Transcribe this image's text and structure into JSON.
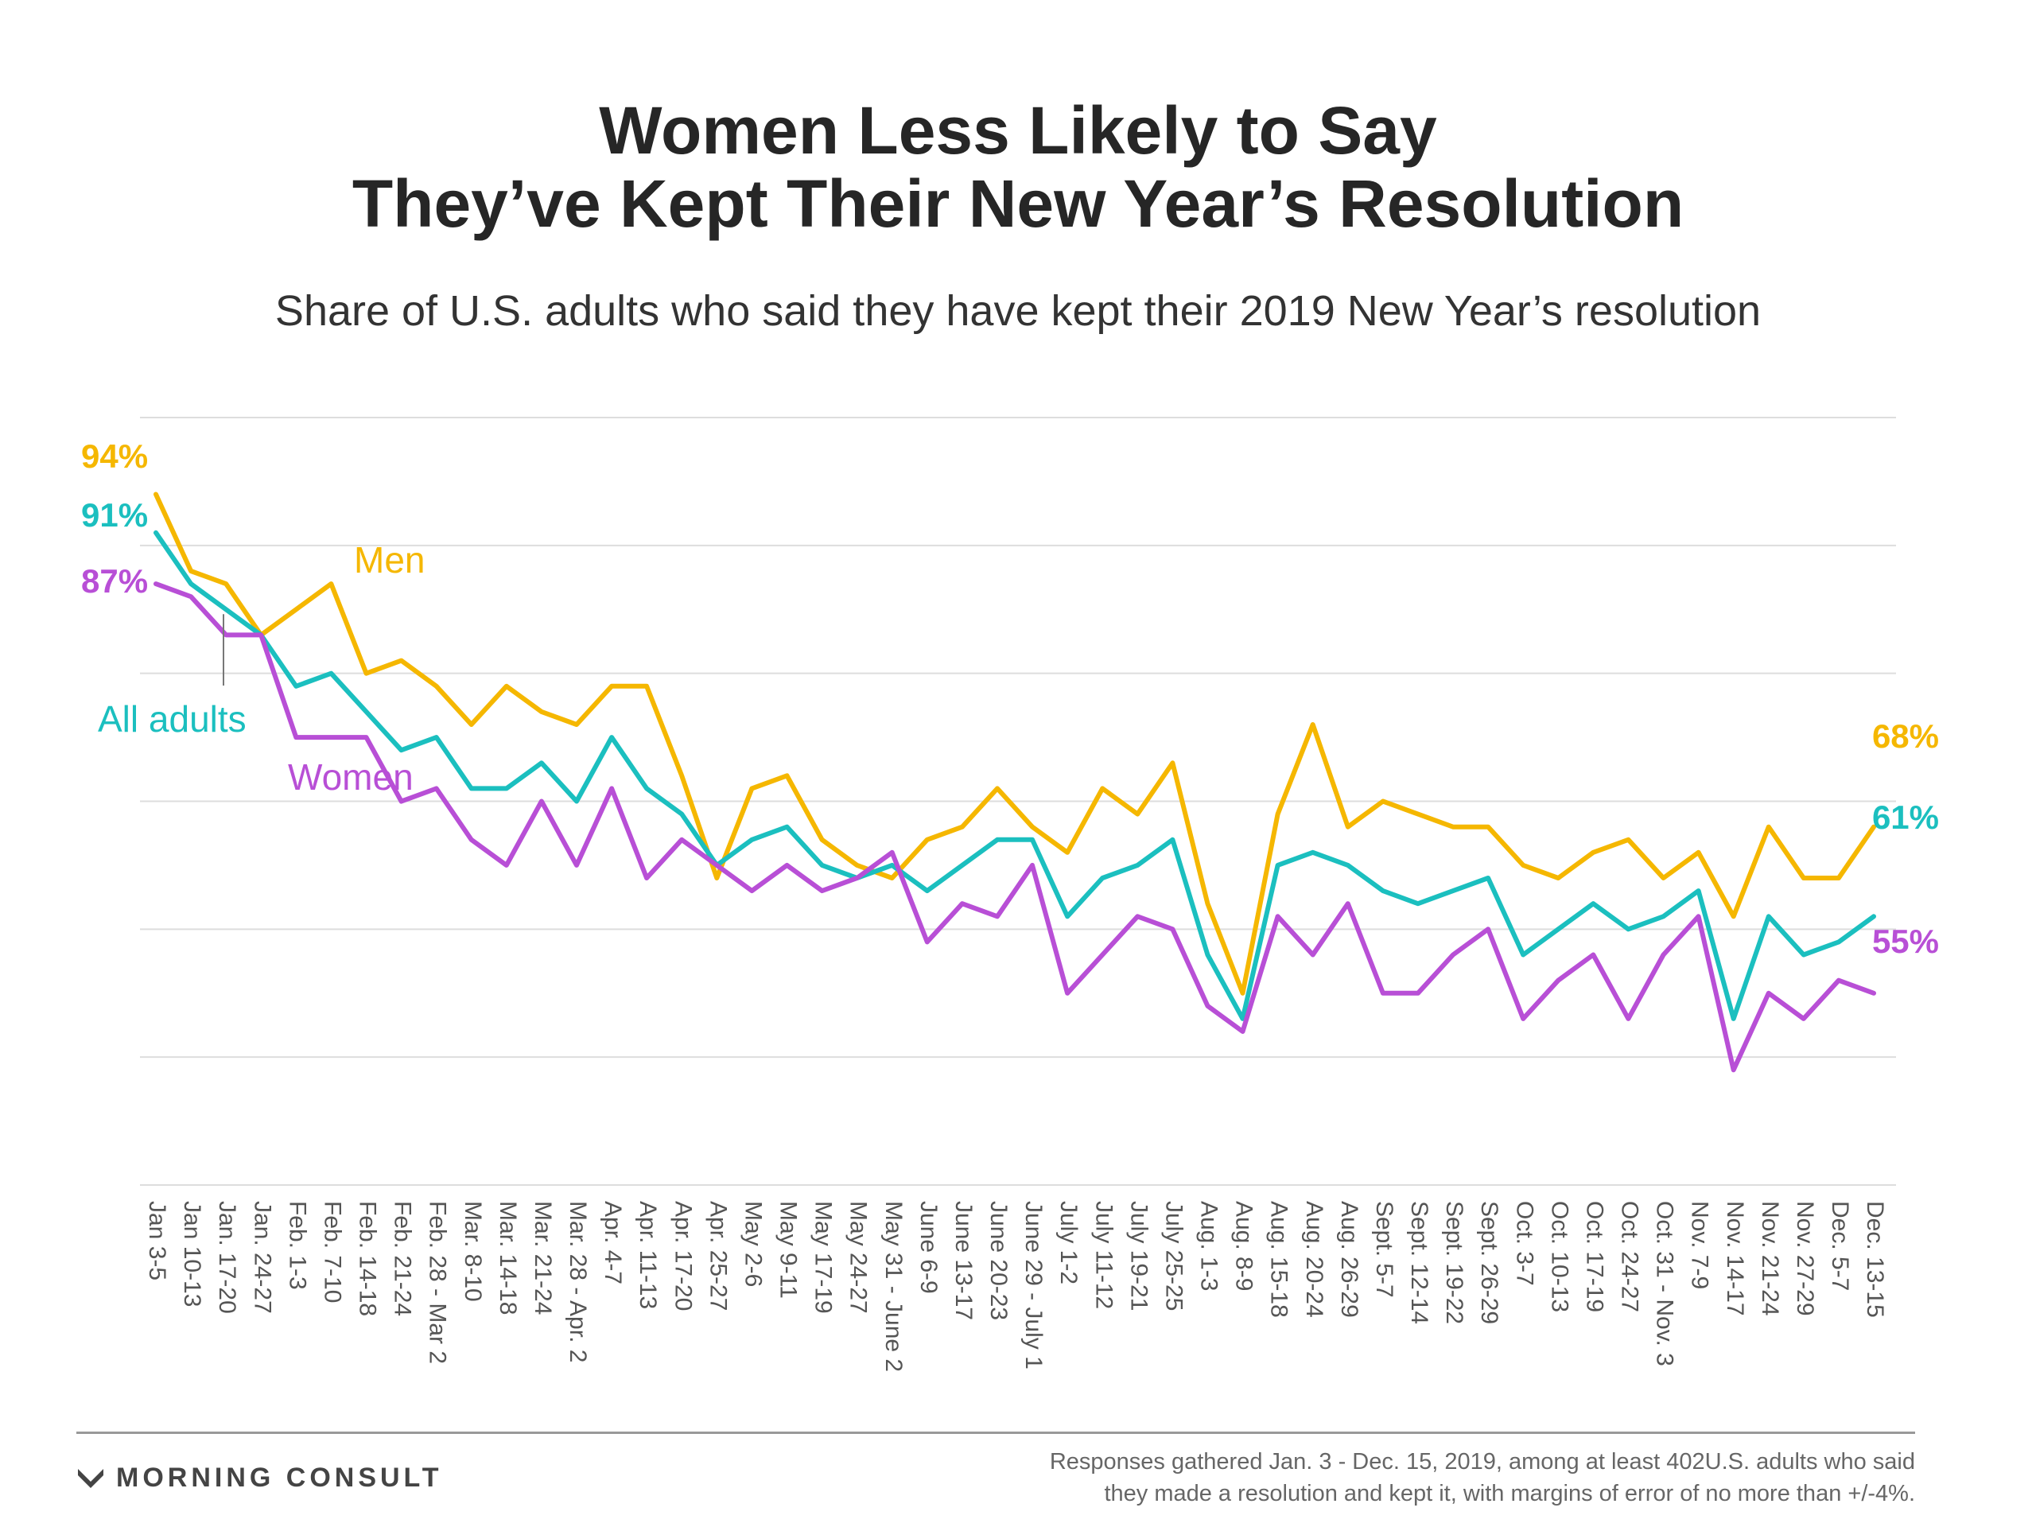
{
  "title_line1": "Women Less Likely to Say",
  "title_line2": "They’ve Kept Their New Year’s Resolution",
  "subtitle": "Share of U.S. adults who said they have kept their 2019 New Year’s resolution",
  "brand": "MORNING CONSULT",
  "note_line1": "Responses gathered Jan. 3 - Dec. 15, 2019, among at least 402U.S. adults who said",
  "note_line2": "they made a resolution and kept it, with margins of error of no more than +/-4%.",
  "colors": {
    "men": "#F5B700",
    "all_adults": "#1BBFBF",
    "women": "#B84FD6",
    "grid": "#dddddd"
  },
  "chart_data": {
    "type": "line",
    "ylim": [
      40,
      100
    ],
    "grid": true,
    "x": [
      "Jan 3-5",
      "Jan 10-13",
      "Jan. 17-20",
      "Jan. 24-27",
      "Feb. 1-3",
      "Feb. 7-10",
      "Feb. 14-18",
      "Feb. 21-24",
      "Feb. 28 - Mar 2",
      "Mar. 8-10",
      "Mar. 14-18",
      "Mar. 21-24",
      "Mar. 28 - Apr. 2",
      "Apr. 4-7",
      "Apr. 11-13",
      "Apr. 17-20",
      "Apr. 25-27",
      "May 2-6",
      "May 9-11",
      "May 17-19",
      "May 24-27",
      "May 31 - June 2",
      "June 6-9",
      "June 13-17",
      "June 20-23",
      "June 29 - July 1",
      "July 1-2",
      "July 11-12",
      "July 19-21",
      "July 25-25",
      "Aug. 1-3",
      "Aug. 8-9",
      "Aug. 15-18",
      "Aug. 20-24",
      "Aug. 26-29",
      "Sept. 5-7",
      "Sept. 12-14",
      "Sept. 19-22",
      "Sept. 26-29",
      "Oct. 3-7",
      "Oct. 10-13",
      "Oct. 17-19",
      "Oct. 24-27",
      "Oct. 31 - Nov. 3",
      "Nov. 7-9",
      "Nov. 14-17",
      "Nov. 21-24",
      "Nov. 27-29",
      "Dec. 5-7",
      "Dec. 13-15"
    ],
    "series": [
      {
        "name": "Men",
        "start_label": "94%",
        "end_label": "68%",
        "values": [
          94,
          88,
          87,
          83,
          85,
          87,
          80,
          81,
          79,
          76,
          79,
          77,
          76,
          79,
          79,
          72,
          64,
          71,
          72,
          67,
          65,
          64,
          67,
          68,
          71,
          68,
          66,
          71,
          69,
          73,
          62,
          55,
          69,
          76,
          68,
          70,
          69,
          68,
          68,
          65,
          64,
          66,
          67,
          64,
          66,
          61,
          68,
          64,
          64,
          68
        ]
      },
      {
        "name": "All adults",
        "start_label": "91%",
        "end_label": "61%",
        "values": [
          91,
          87,
          85,
          83,
          79,
          80,
          77,
          74,
          75,
          71,
          71,
          73,
          70,
          75,
          71,
          69,
          65,
          67,
          68,
          65,
          64,
          65,
          63,
          65,
          67,
          67,
          61,
          64,
          65,
          67,
          58,
          53,
          65,
          66,
          65,
          63,
          62,
          63,
          64,
          58,
          60,
          62,
          60,
          61,
          63,
          53,
          61,
          58,
          59,
          61
        ]
      },
      {
        "name": "Women",
        "start_label": "87%",
        "end_label": "55%",
        "values": [
          87,
          86,
          83,
          83,
          75,
          75,
          75,
          70,
          71,
          67,
          65,
          70,
          65,
          71,
          64,
          67,
          65,
          63,
          65,
          63,
          64,
          66,
          59,
          62,
          61,
          65,
          55,
          58,
          61,
          60,
          54,
          52,
          61,
          58,
          62,
          55,
          55,
          58,
          60,
          53,
          56,
          58,
          53,
          58,
          61,
          49,
          55,
          53,
          56,
          55
        ]
      }
    ]
  }
}
